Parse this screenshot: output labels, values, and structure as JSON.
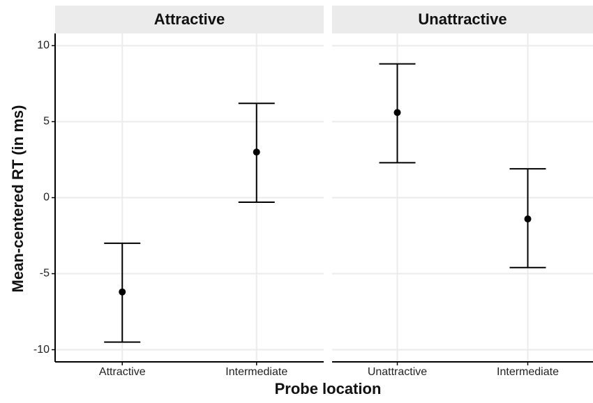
{
  "chart_data": {
    "type": "scatter",
    "title": "",
    "xlabel": "Probe location",
    "ylabel": "Mean-centered RT (in ms)",
    "ylim": [
      -10.8,
      10.8
    ],
    "yticks": [
      10,
      5,
      0,
      -5,
      -10
    ],
    "ytick_labels": [
      "10",
      "5",
      "0",
      "-5",
      "-10"
    ],
    "grid": true,
    "error_bars": true,
    "panels": [
      {
        "title": "Attractive",
        "categories": [
          "Attractive",
          "Intermediate"
        ],
        "points": [
          {
            "x": "Attractive",
            "y": -6.2,
            "lower": -9.5,
            "upper": -3.0
          },
          {
            "x": "Intermediate",
            "y": 3.0,
            "lower": -0.3,
            "upper": 6.2
          }
        ]
      },
      {
        "title": "Unattractive",
        "categories": [
          "Unattractive",
          "Intermediate"
        ],
        "points": [
          {
            "x": "Unattractive",
            "y": 5.6,
            "lower": 2.3,
            "upper": 8.8
          },
          {
            "x": "Intermediate",
            "y": -1.4,
            "lower": -4.6,
            "upper": 1.9
          }
        ]
      }
    ],
    "colors": {
      "strip_background": "#ebebeb",
      "grid": "#ebebeb",
      "axis": "#000000",
      "point": "#000000"
    }
  }
}
